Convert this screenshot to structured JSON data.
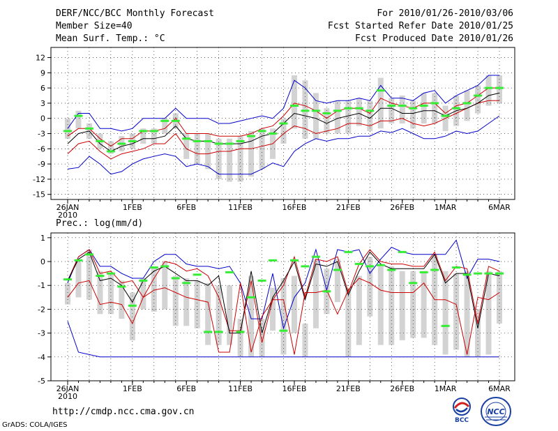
{
  "header": {
    "title": "DERF/NCC/BCC Monthly Forecast",
    "member_size": "Member Size=40",
    "variable1": "Mean Surf. Temp.: °C",
    "period": "For 2010/01/26-2010/03/06",
    "started": "Fcst Started Refer Date 2010/01/25",
    "produced": "Fcst Produced Date 2010/01/26"
  },
  "footer": {
    "url": "http://cmdp.ncc.cma.gov.cn",
    "grads": "GrADS: COLA/IGES",
    "logo1": "BCC",
    "logo2": "NCC"
  },
  "colors": {
    "envelope": "#0000cc",
    "spread": "#cc0000",
    "mean": "#000000",
    "box": "#d3d3d3",
    "marker": "#33ee33"
  },
  "chart_data": [
    {
      "type": "line",
      "title": "Mean Surf. Temp.: °C",
      "ylim": [
        -16,
        14
      ],
      "yticks": [
        12,
        9,
        6,
        3,
        0,
        -3,
        -6,
        -9,
        -12,
        -15
      ],
      "x_days": 41,
      "xtick_days": [
        0,
        6,
        11,
        16,
        21,
        26,
        31,
        35,
        40
      ],
      "xtick_labels": [
        "26JAN",
        "1FEB",
        "6FEB",
        "11FEB",
        "16FEB",
        "21FEB",
        "26FEB",
        "1MAR",
        "6MAR"
      ],
      "xtick_sublabel": "2010",
      "grid": true,
      "series": [
        {
          "name": "max",
          "values": [
            -10,
            -9.7,
            -7.5,
            -9,
            -11,
            -10.5,
            -9,
            -8,
            -7.5,
            -7,
            -7.5,
            -9.5,
            -9,
            -9.5,
            -11,
            -11,
            -11,
            -11,
            -10,
            -8.8,
            -9.5,
            -6.5,
            -5,
            -4,
            -4.5,
            -4,
            -4,
            -3.5,
            -3.5,
            -2.5,
            -2.8,
            -2,
            -3,
            -4,
            -4,
            -3.5,
            -2.5,
            -3,
            -2.5,
            -1,
            0.5
          ]
        },
        {
          "name": "p75",
          "values": [
            -7,
            -5,
            -4.5,
            -6.5,
            -8,
            -7,
            -6.5,
            -6,
            -5,
            -5,
            -3,
            -6,
            -7,
            -7,
            -6.5,
            -6.5,
            -6,
            -6,
            -5.5,
            -5,
            -3,
            -1.5,
            -2,
            -3,
            -2.5,
            -2,
            -1,
            -1,
            -1.5,
            -0.5,
            -0.5,
            0,
            -1,
            -1.5,
            -1,
            0,
            1,
            2,
            3,
            3.5,
            3.5
          ]
        },
        {
          "name": "mean",
          "values": [
            -5,
            -3,
            -2.5,
            -5,
            -6.5,
            -5.5,
            -5,
            -4,
            -4,
            -3.5,
            -1.5,
            -4,
            -4.5,
            -4.5,
            -5,
            -5,
            -5,
            -4.5,
            -3.5,
            -3,
            -1,
            1,
            0.5,
            0,
            -1,
            0,
            0.5,
            1,
            0,
            2,
            2,
            1,
            1,
            1.5,
            1.5,
            0.5,
            1.5,
            2,
            3,
            4.5,
            5
          ]
        },
        {
          "name": "p25",
          "values": [
            -3.5,
            -2,
            -2,
            -4,
            -5.5,
            -4,
            -4,
            -2.5,
            -2.5,
            -2,
            0,
            -3,
            -3,
            -3,
            -3.5,
            -3.5,
            -3.5,
            -3,
            -2,
            -1.5,
            0.5,
            3,
            2.5,
            1.5,
            0,
            1.5,
            2,
            2,
            1,
            4,
            3,
            2.5,
            2,
            3,
            3,
            1,
            2.5,
            3,
            4.5,
            6,
            6
          ]
        },
        {
          "name": "min",
          "values": [
            -2,
            1,
            1,
            -2,
            -2,
            -2.5,
            -2,
            0,
            0,
            0,
            2,
            0,
            0,
            0,
            -1,
            -1,
            -0.5,
            0,
            0.5,
            0,
            2,
            7.5,
            6,
            3.5,
            3,
            3.5,
            3.5,
            4,
            3.5,
            6.5,
            4,
            4,
            3.5,
            5,
            5.5,
            3,
            4.5,
            5.5,
            6.5,
            8.5,
            8.5
          ]
        },
        {
          "name": "observed",
          "values": [
            -2.5,
            0.5,
            -2,
            -4.5,
            -6.5,
            -5,
            -4.5,
            -2.5,
            -2.5,
            -0.5,
            -0.5,
            -4,
            -4.5,
            -4.5,
            -5,
            -5,
            -4.5,
            -3.5,
            -2.5,
            -3,
            -1,
            2.5,
            1.5,
            1.5,
            1,
            1.5,
            2,
            2,
            1.5,
            5.5,
            2.5,
            2.5,
            2,
            2.5,
            3,
            0.5,
            2,
            3,
            4.5,
            6,
            6
          ]
        }
      ],
      "spread_boxes": [
        [
          -4,
          0
        ],
        [
          -2,
          1.5
        ],
        [
          -4,
          -1
        ],
        [
          -6,
          -3
        ],
        [
          -7,
          -4.5
        ],
        [
          -6.5,
          -3.5
        ],
        [
          -6,
          -3
        ],
        [
          -5,
          -2
        ],
        [
          -5,
          -2
        ],
        [
          -3,
          0
        ],
        [
          -2,
          1
        ],
        [
          -8,
          -3
        ],
        [
          -9,
          -3
        ],
        [
          -10,
          -3
        ],
        [
          -12,
          -4
        ],
        [
          -12.5,
          -4
        ],
        [
          -12.5,
          -3.5
        ],
        [
          -11.5,
          -2.5
        ],
        [
          -10,
          -2
        ],
        [
          -8,
          -2
        ],
        [
          -5,
          0
        ],
        [
          -2,
          8.5
        ],
        [
          -4,
          7.5
        ],
        [
          -4,
          5
        ],
        [
          -3,
          2
        ],
        [
          -3,
          3.5
        ],
        [
          -3,
          3.5
        ],
        [
          -1.5,
          4
        ],
        [
          -2.5,
          3.5
        ],
        [
          -2,
          8
        ],
        [
          -1,
          4
        ],
        [
          -1,
          4.5
        ],
        [
          -2,
          3.5
        ],
        [
          -1,
          5
        ],
        [
          -1,
          5
        ],
        [
          -2.5,
          2.5
        ],
        [
          -1.5,
          4.5
        ],
        [
          -0.5,
          5.5
        ],
        [
          1,
          6.5
        ],
        [
          2.5,
          8.5
        ],
        [
          3,
          8.5
        ]
      ]
    },
    {
      "type": "line",
      "title": "Prec.: log(mm/d)",
      "ylim": [
        -5,
        1.2
      ],
      "yticks": [
        1,
        0,
        -1,
        -2,
        -3,
        -4,
        -5
      ],
      "x_days": 41,
      "xtick_days": [
        0,
        6,
        11,
        16,
        21,
        26,
        31,
        35,
        40
      ],
      "xtick_labels": [
        "26JAN",
        "1FEB",
        "6FEB",
        "11FEB",
        "16FEB",
        "21FEB",
        "26FEB",
        "1MAR",
        "6MAR"
      ],
      "xtick_sublabel": "2010",
      "grid": true,
      "series": [
        {
          "name": "max",
          "values": [
            -0.9,
            0.2,
            0.5,
            -0.2,
            -0.2,
            -0.5,
            -0.7,
            -0.7,
            0,
            0.3,
            0.3,
            -0.1,
            -0.2,
            -0.2,
            -0.3,
            -0.2,
            -0.9,
            -2.4,
            -2.4,
            -0.5,
            -2.8,
            -1.5,
            -0.9,
            0.5,
            -1.2,
            0.5,
            0.4,
            0.5,
            -0.5,
            0.1,
            0.6,
            0.4,
            0.3,
            0.3,
            0.3,
            0.3,
            0.9,
            -0.7,
            0.1,
            0.1,
            0
          ]
        },
        {
          "name": "p75",
          "values": [
            -0.8,
            0.2,
            0.5,
            -0.5,
            -0.4,
            -0.9,
            -0.8,
            -1.5,
            -0.7,
            0,
            -0.1,
            -0.4,
            -0.3,
            -0.6,
            -1.5,
            -2.9,
            -2.9,
            -0.8,
            -3.4,
            -1.6,
            -1,
            0.2,
            -1.5,
            0.1,
            0,
            0.2,
            -1.3,
            -0.1,
            0.5,
            0,
            -0.1,
            -0.1,
            -0.2,
            -0.2,
            0.4,
            -0.8,
            -0.2,
            -0.3,
            -2.6,
            -0.2,
            -0.4
          ]
        },
        {
          "name": "mean",
          "values": [
            -0.8,
            0.1,
            0.4,
            -0.8,
            -0.7,
            -1,
            -1.7,
            -0.8,
            -0.4,
            -0.2,
            -0.5,
            -0.8,
            -0.8,
            -1,
            -0.6,
            -3,
            -3,
            -0.4,
            -3,
            -1.5,
            -0.8,
            0,
            -1.6,
            -0.1,
            -0.2,
            0,
            -1.4,
            -0.4,
            0.4,
            -0.1,
            -0.3,
            -0.3,
            -0.3,
            -0.3,
            0.3,
            -0.9,
            -0.5,
            -0.5,
            -2.8,
            -0.5,
            -0.6
          ]
        },
        {
          "name": "p25",
          "values": [
            -1.5,
            -0.9,
            -0.8,
            -1.8,
            -1.7,
            -1.8,
            -2.6,
            -1.5,
            -1.2,
            -1.1,
            -1.3,
            -1.5,
            -1.6,
            -1.7,
            -3.8,
            -3.8,
            -0.9,
            -3.8,
            -2.3,
            -1.6,
            -1.6,
            -3.9,
            -1.3,
            -1.3,
            -1.2,
            -2.2,
            -1.2,
            -0.7,
            -0.9,
            -1.2,
            -1.3,
            -1.3,
            -1.3,
            -0.9,
            -1.6,
            -1.6,
            -1.8,
            -3.9,
            -1.5,
            -1.6,
            -1.3
          ]
        },
        {
          "name": "min",
          "values": [
            -2.5,
            -3.8,
            -3.9,
            -4,
            -4,
            -4,
            -4,
            -4,
            -4,
            -4,
            -4,
            -4,
            -4,
            -4,
            -4,
            -4,
            -4,
            -4,
            -4,
            -4,
            -4,
            -4,
            -4,
            -4,
            -4,
            -4,
            -4,
            -4,
            -4,
            -4,
            -4,
            -4,
            -4,
            -4,
            -4,
            -4,
            -4,
            -4,
            -4,
            -4,
            -4
          ]
        },
        {
          "name": "observed",
          "values": [
            -0.75,
            0.05,
            0.3,
            -0.6,
            -0.5,
            -1.05,
            -1.85,
            -0.8,
            -0.25,
            -0.2,
            -0.7,
            -0.9,
            -0.55,
            -2.95,
            -2.95,
            -0.45,
            -2.95,
            -1.5,
            -0.8,
            0.05,
            -2.9,
            0.05,
            -0.2,
            0.2,
            -1.25,
            -0.35,
            0.4,
            -0.1,
            -0.2,
            -0.15,
            -0.35,
            0.4,
            -0.9,
            -0.45,
            -0.35,
            -2.7,
            -0.25,
            -0.55,
            -0.5,
            -0.5,
            -0.5
          ]
        }
      ],
      "spread_boxes": [
        [
          -1.8,
          -0.9
        ],
        [
          -1.5,
          0
        ],
        [
          -1.6,
          0.5
        ],
        [
          -2.2,
          -0.4
        ],
        [
          -2.2,
          -0.5
        ],
        [
          -2.4,
          -0.8
        ],
        [
          -3.3,
          -1.3
        ],
        [
          -2,
          -0.7
        ],
        [
          -2.1,
          -0.2
        ],
        [
          -2,
          0
        ],
        [
          -2.7,
          -0.6
        ],
        [
          -2.7,
          -0.7
        ],
        [
          -2.8,
          -0.8
        ],
        [
          -3.5,
          -0.9
        ],
        [
          -3.5,
          -1
        ],
        [
          -3.5,
          -1
        ],
        [
          -4,
          -2.4
        ],
        [
          -4,
          -0.6
        ],
        [
          -4,
          -2.4
        ],
        [
          -2.9,
          -1.1
        ],
        [
          -3.9,
          -0.7
        ],
        [
          -3,
          -0.6
        ],
        [
          -4,
          -2.6
        ],
        [
          -2.8,
          0.1
        ],
        [
          -2.2,
          -0.3
        ],
        [
          -1.7,
          0.1
        ],
        [
          -4,
          -1.1
        ],
        [
          -3.5,
          -0.6
        ],
        [
          -2.3,
          0.2
        ],
        [
          -3.5,
          -0.2
        ],
        [
          -3.5,
          -0.2
        ],
        [
          -3.3,
          -0.4
        ],
        [
          -3.2,
          -0.4
        ],
        [
          -3.2,
          -0.4
        ],
        [
          -3.5,
          0.3
        ],
        [
          -3.9,
          -0.4
        ],
        [
          -3.7,
          -0.5
        ],
        [
          -4,
          -0.4
        ],
        [
          -4,
          -2
        ],
        [
          -3.9,
          -0.4
        ],
        [
          -2.6,
          -0.4
        ]
      ]
    }
  ]
}
